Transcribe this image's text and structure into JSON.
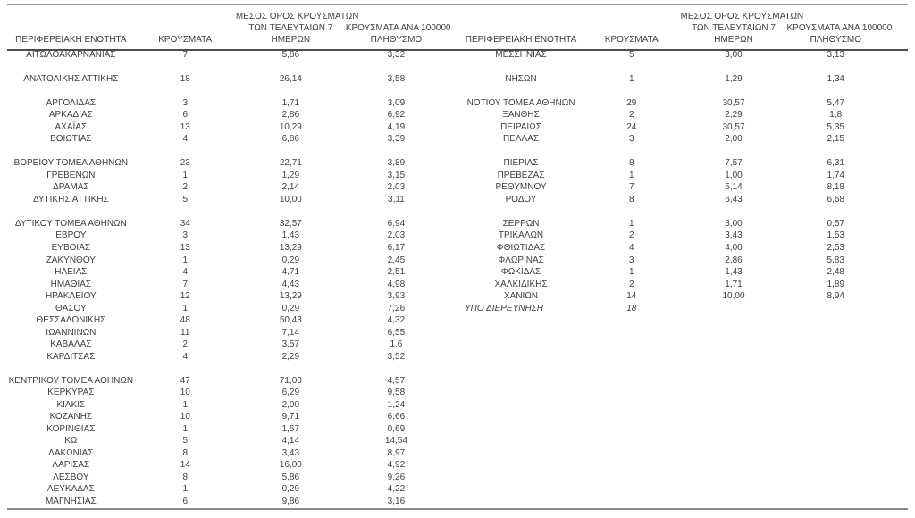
{
  "page": {
    "background": "#ffffff",
    "text_color": "#3f3f3f",
    "top_rule_color": "#9b9b9b",
    "header_rule_color": "#4d4d4d",
    "bottom_rule_color": "#8a8a8a"
  },
  "header": {
    "col1": [
      "ΠΕΡΙΦΕΡΕΙΑΚΗ ΕΝΟΤΗΤΑ"
    ],
    "col2": [
      "ΚΡΟΥΣΜΑΤΑ"
    ],
    "col3": [
      "ΜΕΣΟΣ ΟΡΟΣ ΚΡΟΥΣΜΑΤΩΝ",
      "ΤΩΝ ΤΕΛΕΥΤΑΙΩΝ 7",
      "ΗΜΕΡΩΝ"
    ],
    "col4": [
      "ΚΡΟΥΣΜΑΤΑ ΑΝΑ 100000",
      "ΠΛΗΘΥΣΜΟ"
    ]
  },
  "tables": {
    "left": {
      "rows": [
        [
          "ΑΙΤΩΛΟΑΚΑΡΝΑΝΙΑΣ",
          "7",
          "5,86",
          "3,32"
        ],
        null,
        [
          "ΑΝΑΤΟΛΙΚΗΣ ΑΤΤΙΚΗΣ",
          "18",
          "26,14",
          "3,58"
        ],
        null,
        [
          "ΑΡΓΟΛΙΔΑΣ",
          "3",
          "1,71",
          "3,09"
        ],
        [
          "ΑΡΚΑΔΙΑΣ",
          "6",
          "2,86",
          "6,92"
        ],
        [
          "ΑΧΑΪΑΣ",
          "13",
          "10,29",
          "4,19"
        ],
        [
          "ΒΟΙΩΤΙΑΣ",
          "4",
          "6,86",
          "3,39"
        ],
        null,
        [
          "ΒΟΡΕΙΟΥ ΤΟΜΕΑ ΑΘΗΝΩΝ",
          "23",
          "22,71",
          "3,89"
        ],
        [
          "ΓΡΕΒΕΝΩΝ",
          "1",
          "1,29",
          "3,15"
        ],
        [
          "ΔΡΑΜΑΣ",
          "2",
          "2,14",
          "2,03"
        ],
        [
          "ΔΥΤΙΚΗΣ ΑΤΤΙΚΗΣ",
          "5",
          "10,00",
          "3,11"
        ],
        null,
        [
          "ΔΥΤΙΚΟΥ ΤΟΜΕΑ ΑΘΗΝΩΝ",
          "34",
          "32,57",
          "6,94"
        ],
        [
          "ΕΒΡΟΥ",
          "3",
          "1,43",
          "2,03"
        ],
        [
          "ΕΥΒΟΙΑΣ",
          "13",
          "13,29",
          "6,17"
        ],
        [
          "ΖΑΚΥΝΘΟΥ",
          "1",
          "0,29",
          "2,45"
        ],
        [
          "ΗΛΕΙΑΣ",
          "4",
          "4,71",
          "2,51"
        ],
        [
          "ΗΜΑΘΙΑΣ",
          "7",
          "4,43",
          "4,98"
        ],
        [
          "ΗΡΑΚΛΕΙΟΥ",
          "12",
          "13,29",
          "3,93"
        ],
        [
          "ΘΑΣΟΥ",
          "1",
          "0,29",
          "7,26"
        ],
        [
          "ΘΕΣΣΑΛΟΝΙΚΗΣ",
          "48",
          "50,43",
          "4,32"
        ],
        [
          "ΙΩΑΝΝΙΝΩΝ",
          "11",
          "7,14",
          "6,55"
        ],
        [
          "ΚΑΒΑΛΑΣ",
          "2",
          "3,57",
          "1,6"
        ],
        [
          "ΚΑΡΔΙΤΣΑΣ",
          "4",
          "2,29",
          "3,52"
        ],
        null,
        [
          "ΚΕΝΤΡΙΚΟΥ ΤΟΜΕΑ ΑΘΗΝΩΝ",
          "47",
          "71,00",
          "4,57"
        ],
        [
          "ΚΕΡΚΥΡΑΣ",
          "10",
          "6,29",
          "9,58"
        ],
        [
          "ΚΙΛΚΙΣ",
          "1",
          "2,00",
          "1,24"
        ],
        [
          "ΚΟΖΑΝΗΣ",
          "10",
          "9,71",
          "6,66"
        ],
        [
          "ΚΟΡΙΝΘΙΑΣ",
          "1",
          "1,57",
          "0,69"
        ],
        [
          "ΚΩ",
          "5",
          "4,14",
          "14,54"
        ],
        [
          "ΛΑΚΩΝΙΑΣ",
          "8",
          "3,43",
          "8,97"
        ],
        [
          "ΛΑΡΙΣΑΣ",
          "14",
          "16,00",
          "4,92"
        ],
        [
          "ΛΕΣΒΟΥ",
          "8",
          "5,86",
          "9,26"
        ],
        [
          "ΛΕΥΚΑΔΑΣ",
          "1",
          "0,29",
          "4,22"
        ],
        [
          "ΜΑΓΝΗΣΙΑΣ",
          "6",
          "9,86",
          "3,16"
        ]
      ]
    },
    "right": {
      "rows": [
        [
          "ΜΕΣΣΗΝΙΑΣ",
          "5",
          "3,00",
          "3,13"
        ],
        null,
        [
          "ΝΗΣΩΝ",
          "1",
          "1,29",
          "1,34"
        ],
        null,
        [
          "ΝΟΤΙΟΥ ΤΟΜΕΑ ΑΘΗΝΩΝ",
          "29",
          "30,57",
          "5,47"
        ],
        [
          "ΞΑΝΘΗΣ",
          "2",
          "2,29",
          "1,8"
        ],
        [
          "ΠΕΙΡΑΙΩΣ",
          "24",
          "30,57",
          "5,35"
        ],
        [
          "ΠΕΛΛΑΣ",
          "3",
          "2,00",
          "2,15"
        ],
        null,
        [
          "ΠΙΕΡΙΑΣ",
          "8",
          "7,57",
          "6,31"
        ],
        [
          "ΠΡΕΒΕΖΑΣ",
          "1",
          "1,00",
          "1,74"
        ],
        [
          "ΡΕΘΥΜΝΟΥ",
          "7",
          "5,14",
          "8,18"
        ],
        [
          "ΡΟΔΟΥ",
          "8",
          "6,43",
          "6,68"
        ],
        null,
        [
          "ΣΕΡΡΩΝ",
          "1",
          "3,00",
          "0,57"
        ],
        [
          "ΤΡΙΚΑΛΩΝ",
          "2",
          "3,43",
          "1,53"
        ],
        [
          "ΦΘΙΩΤΙΔΑΣ",
          "4",
          "4,00",
          "2,53"
        ],
        [
          "ΦΛΩΡΙΝΑΣ",
          "3",
          "2,86",
          "5,83"
        ],
        [
          "ΦΩΚΙΔΑΣ",
          "1",
          "1,43",
          "2,48"
        ],
        [
          "ΧΑΛΚΙΔΙΚΗΣ",
          "2",
          "1,71",
          "1,89"
        ],
        [
          "ΧΑΝΙΩΝ",
          "14",
          "10,00",
          "8,94"
        ],
        [
          "ΥΠΟ ΔΙΕΡΕΥΝΗΣΗ",
          "18",
          "",
          "",
          "under-investigation"
        ]
      ]
    }
  }
}
